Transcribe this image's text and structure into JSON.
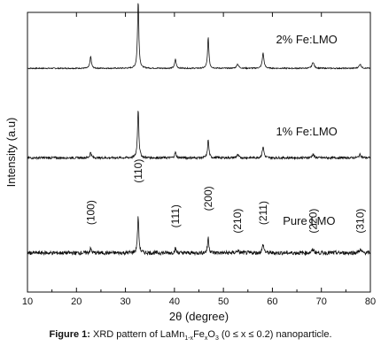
{
  "chart_data": {
    "type": "line",
    "xlabel": "2θ (degree)",
    "ylabel": "Intensity (a.u)",
    "xlim": [
      10,
      80
    ],
    "x_ticks": [
      "10",
      "20",
      "30",
      "40",
      "50",
      "60",
      "70",
      "80"
    ],
    "y_ticks_shown": false,
    "grid": false,
    "series": [
      {
        "name": "2% Fe:LMO",
        "baseline": 0.8,
        "noise": 0.002,
        "color": "#111111",
        "peaks": [
          {
            "x": 22.9,
            "h": 0.042,
            "w": 0.18
          },
          {
            "x": 32.6,
            "h": 0.24,
            "w": 0.16
          },
          {
            "x": 40.2,
            "h": 0.033,
            "w": 0.18
          },
          {
            "x": 46.9,
            "h": 0.11,
            "w": 0.16
          },
          {
            "x": 52.9,
            "h": 0.015,
            "w": 0.25
          },
          {
            "x": 58.1,
            "h": 0.055,
            "w": 0.2
          },
          {
            "x": 68.3,
            "h": 0.022,
            "w": 0.25
          },
          {
            "x": 77.9,
            "h": 0.015,
            "w": 0.25
          }
        ]
      },
      {
        "name": "1% Fe:LMO",
        "baseline": 0.48,
        "noise": 0.004,
        "color": "#111111",
        "peaks": [
          {
            "x": 22.9,
            "h": 0.02,
            "w": 0.18
          },
          {
            "x": 32.6,
            "h": 0.175,
            "w": 0.16
          },
          {
            "x": 40.2,
            "h": 0.02,
            "w": 0.18
          },
          {
            "x": 46.9,
            "h": 0.065,
            "w": 0.16
          },
          {
            "x": 52.9,
            "h": 0.01,
            "w": 0.25
          },
          {
            "x": 58.1,
            "h": 0.04,
            "w": 0.2
          },
          {
            "x": 68.3,
            "h": 0.012,
            "w": 0.25
          },
          {
            "x": 77.9,
            "h": 0.012,
            "w": 0.25
          }
        ]
      },
      {
        "name": "Pure LMO",
        "baseline": 0.14,
        "noise": 0.007,
        "color": "#111111",
        "peaks": [
          {
            "x": 22.9,
            "h": 0.015,
            "w": 0.18
          },
          {
            "x": 32.6,
            "h": 0.13,
            "w": 0.16
          },
          {
            "x": 40.2,
            "h": 0.015,
            "w": 0.18
          },
          {
            "x": 46.9,
            "h": 0.055,
            "w": 0.16
          },
          {
            "x": 52.9,
            "h": 0.008,
            "w": 0.25
          },
          {
            "x": 58.1,
            "h": 0.03,
            "w": 0.2
          },
          {
            "x": 68.3,
            "h": 0.012,
            "w": 0.25
          },
          {
            "x": 77.9,
            "h": 0.012,
            "w": 0.25
          }
        ]
      }
    ],
    "series_labels": [
      {
        "text": "2% Fe:LMO",
        "x": 67,
        "y": 0.89
      },
      {
        "text": "1% Fe:LMO",
        "x": 67,
        "y": 0.56
      },
      {
        "text": "Pure LMO",
        "x": 67.5,
        "y": 0.24
      }
    ],
    "peak_labels": [
      {
        "text": "(100)",
        "x": 22.9,
        "y": 0.24
      },
      {
        "text": "(110)",
        "x": 32.6,
        "y": 0.39
      },
      {
        "text": "(111)",
        "x": 40.2,
        "y": 0.23
      },
      {
        "text": "(200)",
        "x": 46.9,
        "y": 0.29
      },
      {
        "text": "(210)",
        "x": 52.9,
        "y": 0.21
      },
      {
        "text": "(211)",
        "x": 58.1,
        "y": 0.24
      },
      {
        "text": "(220)",
        "x": 68.3,
        "y": 0.21
      },
      {
        "text": "(310)",
        "x": 77.9,
        "y": 0.21
      }
    ]
  },
  "caption": {
    "prefix": "Figure 1:",
    "text_a": " XRD pattern of LaMn",
    "sub_a": "1-x",
    "text_b": "Fe",
    "sub_b": "x",
    "text_c": "O",
    "sub_c": "3",
    "text_d": " (0 ≤ x ≤ 0.2) nanoparticle."
  }
}
